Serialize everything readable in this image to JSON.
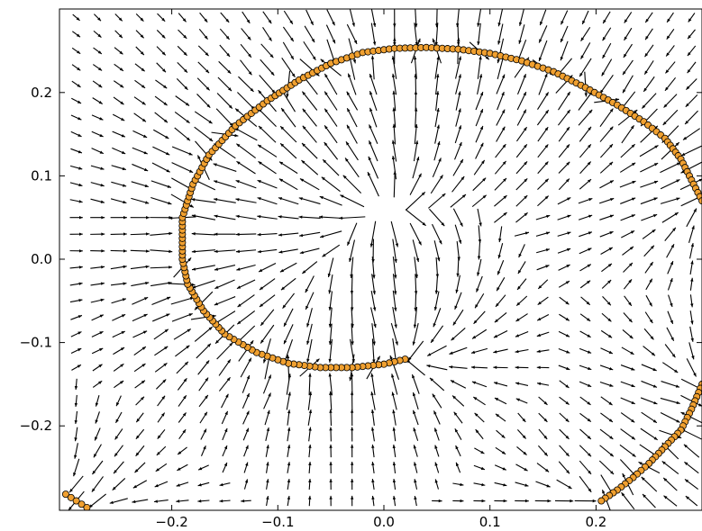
{
  "chart_data": {
    "type": "quiver-scatter",
    "title": "",
    "xlabel": "",
    "ylabel": "",
    "xlim": [
      -0.3,
      0.3
    ],
    "ylim": [
      -0.3,
      0.3
    ],
    "x_ticks": [
      -0.2,
      -0.1,
      0.0,
      0.1,
      0.2
    ],
    "x_tick_labels": [
      "−0.2",
      "−0.1",
      "0.0",
      "0.1",
      "0.2"
    ],
    "y_ticks": [
      0.2,
      0.1,
      0.0,
      -0.1,
      -0.2
    ],
    "y_tick_labels": [
      "0.2",
      "0.1",
      "0.0",
      "−0.1",
      "−0.2"
    ],
    "grid": false,
    "quiver": {
      "grid_x": [
        -0.29,
        -0.27,
        -0.25,
        -0.23,
        -0.21,
        -0.19,
        -0.17,
        -0.15,
        -0.13,
        -0.11,
        -0.09,
        -0.07,
        -0.05,
        -0.03,
        -0.01,
        0.01,
        0.03,
        0.05,
        0.07,
        0.09,
        0.11,
        0.13,
        0.15,
        0.17,
        0.19,
        0.21,
        0.23,
        0.25,
        0.27,
        0.29
      ],
      "grid_y": [
        -0.29,
        -0.27,
        -0.25,
        -0.23,
        -0.21,
        -0.19,
        -0.17,
        -0.15,
        -0.13,
        -0.11,
        -0.09,
        -0.07,
        -0.05,
        -0.03,
        -0.01,
        0.01,
        0.03,
        0.05,
        0.07,
        0.09,
        0.11,
        0.13,
        0.15,
        0.17,
        0.19,
        0.21,
        0.23,
        0.25,
        0.27,
        0.29
      ],
      "field": "Arrows point toward the spiral curve and, inside the curve, away from a central point at about (0.0, 0.06); arrows are longest near the centre and shortest far from the curve.",
      "sinks": [
        {
          "center": [
            0.0,
            0.06
          ],
          "repel": true
        }
      ]
    },
    "points": {
      "color": "#f0a030",
      "edge_color": "#000000",
      "curves": [
        {
          "name": "",
          "description": "spiral arm: from (0.02, -0.12) around the left through (-0.19, 0.05) and over the top to (0.3, 0.07)",
          "x": [
            0.02,
            0.0,
            -0.03,
            -0.06,
            -0.09,
            -0.12,
            -0.15,
            -0.17,
            -0.185,
            -0.19,
            -0.19,
            -0.18,
            -0.165,
            -0.14,
            -0.11,
            -0.08,
            -0.05,
            -0.02,
            0.01,
            0.04,
            0.07,
            0.1,
            0.13,
            0.16,
            0.19,
            0.22,
            0.245,
            0.265,
            0.28,
            0.29,
            0.3
          ],
          "y": [
            -0.12,
            -0.126,
            -0.13,
            -0.13,
            -0.125,
            -0.112,
            -0.09,
            -0.062,
            -0.03,
            0.0,
            0.05,
            0.09,
            0.125,
            0.16,
            0.19,
            0.215,
            0.235,
            0.248,
            0.253,
            0.254,
            0.252,
            0.247,
            0.238,
            0.225,
            0.206,
            0.185,
            0.165,
            0.145,
            0.12,
            0.095,
            0.07
          ]
        },
        {
          "name": "",
          "description": "right-hand arm re-entering from (0.3, -0.15) down to (0.2, -0.29)",
          "x": [
            0.3,
            0.29,
            0.28,
            0.265,
            0.25,
            0.235,
            0.22,
            0.205
          ],
          "y": [
            -0.15,
            -0.18,
            -0.205,
            -0.225,
            -0.245,
            -0.262,
            -0.277,
            -0.29
          ]
        },
        {
          "name": "",
          "description": "bottom-left corner fragment",
          "x": [
            -0.3,
            -0.29,
            -0.28
          ],
          "y": [
            -0.282,
            -0.29,
            -0.298
          ]
        }
      ]
    }
  }
}
